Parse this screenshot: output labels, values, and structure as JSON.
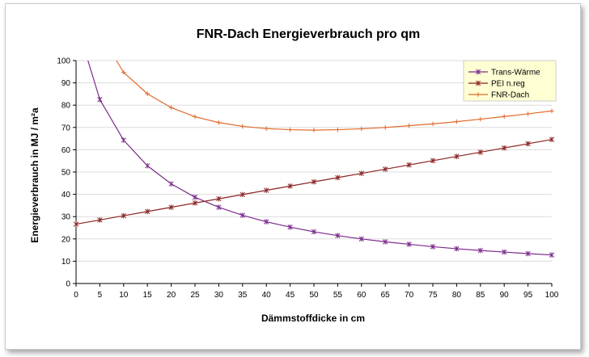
{
  "chart_data": {
    "type": "line",
    "title": "FNR-Dach Energieverbrauch pro qm",
    "xlabel": "Dämmstoffdicke in cm",
    "ylabel": "Energieverbrauch in MJ / m²a",
    "xlim": [
      0,
      100
    ],
    "ylim": [
      0,
      100
    ],
    "x_ticks": [
      0,
      5,
      10,
      15,
      20,
      25,
      30,
      35,
      40,
      45,
      50,
      55,
      60,
      65,
      70,
      75,
      80,
      85,
      90,
      95,
      100
    ],
    "y_ticks": [
      0,
      10,
      20,
      30,
      40,
      50,
      60,
      70,
      80,
      90,
      100
    ],
    "grid": "horizontal",
    "legend_position": "top-right",
    "series": [
      {
        "name": "Trans-Wärme",
        "color": "#7b2a8c",
        "marker": "asterisk",
        "x": [
          5,
          10,
          15,
          20,
          25,
          30,
          35,
          40,
          45,
          50,
          55,
          60,
          65,
          70,
          75,
          80,
          85,
          90,
          95,
          100
        ],
        "values": [
          82.5,
          64.3,
          52.8,
          44.7,
          38.7,
          34.2,
          30.6,
          27.7,
          25.3,
          23.2,
          21.5,
          20.0,
          18.7,
          17.6,
          16.5,
          15.6,
          14.8,
          14.1,
          13.4,
          12.8
        ],
        "line_start": [
          2.5,
          100
        ]
      },
      {
        "name": "PEI n.reg",
        "color": "#8b2323",
        "marker": "asterisk",
        "x": [
          0,
          5,
          10,
          15,
          20,
          25,
          30,
          35,
          40,
          45,
          50,
          55,
          60,
          65,
          70,
          75,
          80,
          85,
          90,
          95,
          100
        ],
        "values": [
          26.6,
          28.5,
          30.4,
          32.3,
          34.2,
          36.1,
          38.0,
          39.9,
          41.8,
          43.7,
          45.6,
          47.5,
          49.4,
          51.3,
          53.2,
          55.1,
          57.0,
          58.9,
          60.8,
          62.7,
          64.6
        ]
      },
      {
        "name": "FNR-Dach",
        "color": "#e06a2c",
        "marker": "plus",
        "x": [
          10,
          15,
          20,
          25,
          30,
          35,
          40,
          45,
          50,
          55,
          60,
          65,
          70,
          75,
          80,
          85,
          90,
          95,
          100
        ],
        "values": [
          94.7,
          85.1,
          78.9,
          74.8,
          72.2,
          70.5,
          69.5,
          69.0,
          68.8,
          69.0,
          69.4,
          70.0,
          70.8,
          71.6,
          72.6,
          73.7,
          74.9,
          76.1,
          77.4
        ],
        "line_start": [
          8.5,
          100
        ]
      }
    ]
  }
}
